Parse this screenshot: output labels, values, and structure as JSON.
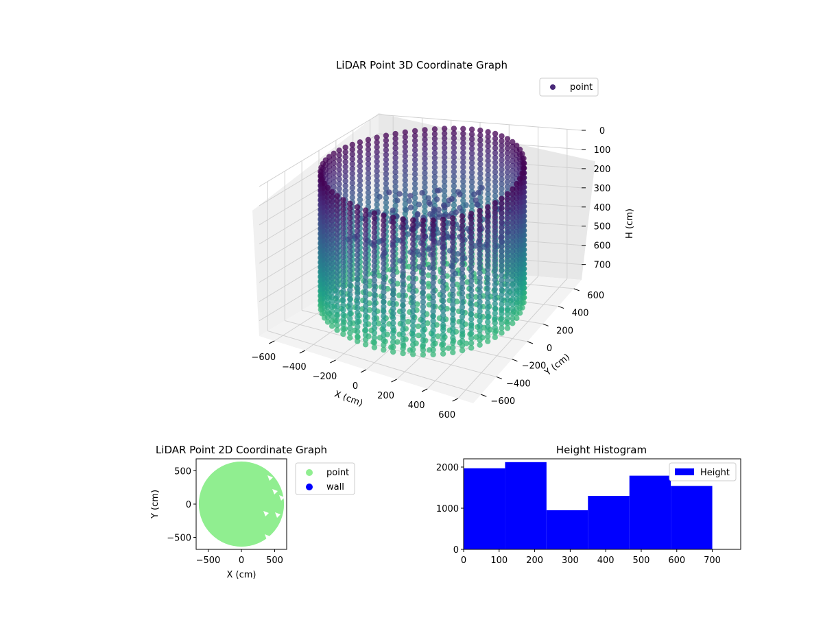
{
  "chart_data": [
    {
      "type": "scatter",
      "projection": "3d",
      "title": "LiDAR Point 3D Coordinate Graph",
      "xlabel": "X (cm)",
      "ylabel": "Y (cm)",
      "zlabel": "H (cm)",
      "xlim": [
        -700,
        700
      ],
      "ylim": [
        -700,
        700
      ],
      "zlim": [
        0,
        780
      ],
      "z_inverted": true,
      "xticks": [
        "−600",
        "−400",
        "−200",
        "0",
        "200",
        "400",
        "600"
      ],
      "yticks": [
        "−600",
        "−400",
        "−200",
        "0",
        "200",
        "400",
        "600"
      ],
      "zticks": [
        "0",
        "100",
        "200",
        "300",
        "400",
        "500",
        "600",
        "700"
      ],
      "legend": {
        "label": "point",
        "placement": "top-right",
        "color": "#482878"
      },
      "colormap": "viridis",
      "description": "Points form a cylindrical wall of radius ~600 cm spanning heights 0–700 cm, plus scattered interior points near the top.",
      "wall_radius": 600,
      "height_range": [
        0,
        700
      ]
    },
    {
      "type": "scatter",
      "title": "LiDAR Point 2D Coordinate Graph",
      "xlabel": "X (cm)",
      "ylabel": "Y (cm)",
      "xlim": [
        -680,
        680
      ],
      "ylim": [
        -680,
        680
      ],
      "xticks": [
        -500,
        0,
        500
      ],
      "yticks": [
        -500,
        0,
        500
      ],
      "series": [
        {
          "name": "point",
          "color": "#90ee90"
        },
        {
          "name": "wall",
          "color": "#0000ff"
        }
      ],
      "legend_placement": "outside-right",
      "point_region": {
        "center": [
          0,
          0
        ],
        "radius": 640
      }
    },
    {
      "type": "bar",
      "title": "Height Histogram",
      "xlim": [
        0,
        780
      ],
      "ylim": [
        0,
        2200
      ],
      "xticks": [
        0,
        100,
        200,
        300,
        400,
        500,
        600,
        700
      ],
      "yticks": [
        0,
        1000,
        2000
      ],
      "bin_edges": [
        0,
        116.7,
        233.3,
        350,
        466.7,
        583.3,
        700
      ],
      "values": [
        1970,
        2120,
        950,
        1300,
        1790,
        1540
      ],
      "series": [
        {
          "name": "Height",
          "color": "#0000ff"
        }
      ],
      "legend_placement": "top-right"
    }
  ]
}
